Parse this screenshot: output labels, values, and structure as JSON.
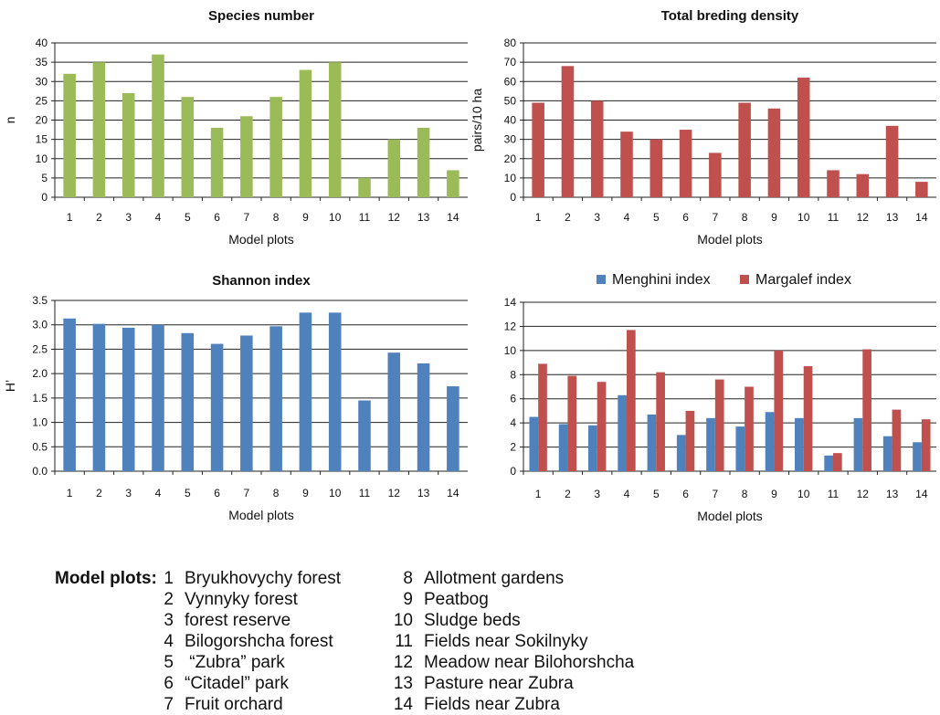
{
  "chart_data": [
    {
      "type": "bar",
      "title": "Species number",
      "xlabel": "Model plots",
      "ylabel": "n",
      "ylim": [
        0,
        40
      ],
      "yticks": [
        "0",
        "5",
        "10",
        "15",
        "20",
        "25",
        "30",
        "35",
        "40"
      ],
      "categories": [
        "1",
        "2",
        "3",
        "4",
        "5",
        "6",
        "7",
        "8",
        "9",
        "10",
        "11",
        "12",
        "13",
        "14"
      ],
      "series": [
        {
          "values": [
            32,
            35,
            27,
            37,
            26,
            18,
            21,
            26,
            33,
            35,
            5,
            15,
            18,
            7
          ],
          "color": "#9bbb59"
        }
      ],
      "grid": true
    },
    {
      "type": "bar",
      "title": "Total breding density",
      "xlabel": "Model plots",
      "ylabel": "pairs/10 ha",
      "ylim": [
        0,
        80
      ],
      "yticks": [
        "0",
        "10",
        "20",
        "30",
        "40",
        "50",
        "60",
        "70",
        "80"
      ],
      "categories": [
        "1",
        "2",
        "3",
        "4",
        "5",
        "6",
        "7",
        "8",
        "9",
        "10",
        "11",
        "12",
        "13",
        "14"
      ],
      "series": [
        {
          "values": [
            49,
            68,
            50,
            34,
            30,
            35,
            23,
            49,
            46,
            62,
            14,
            12,
            37,
            8
          ],
          "color": "#c0504d"
        }
      ],
      "grid": true
    },
    {
      "type": "bar",
      "title": "Shannon index",
      "xlabel": "Model plots",
      "ylabel": "H’",
      "ylim": [
        0,
        3.5
      ],
      "yticks": [
        "0.0",
        "0.5",
        "1.0",
        "1.5",
        "2.0",
        "2.5",
        "3.0",
        "3.5"
      ],
      "categories": [
        "1",
        "2",
        "3",
        "4",
        "5",
        "6",
        "7",
        "8",
        "9",
        "10",
        "11",
        "12",
        "13",
        "14"
      ],
      "series": [
        {
          "values": [
            3.13,
            3.02,
            2.94,
            3.0,
            2.83,
            2.61,
            2.78,
            2.97,
            3.25,
            3.25,
            1.45,
            2.43,
            2.21,
            1.74
          ],
          "color": "#4f81bd"
        }
      ],
      "grid": true
    },
    {
      "type": "bar",
      "title": "",
      "xlabel": "Model plots",
      "ylabel": "",
      "ylim": [
        0,
        14
      ],
      "yticks": [
        "0",
        "2",
        "4",
        "6",
        "8",
        "10",
        "12",
        "14"
      ],
      "categories": [
        "1",
        "2",
        "3",
        "4",
        "5",
        "6",
        "7",
        "8",
        "9",
        "10",
        "11",
        "12",
        "13",
        "14"
      ],
      "legend": "top",
      "series": [
        {
          "name": "Menghini index",
          "values": [
            4.5,
            3.9,
            3.8,
            6.3,
            4.7,
            3.0,
            4.4,
            3.7,
            4.9,
            4.4,
            1.3,
            4.4,
            2.9,
            2.4
          ],
          "color": "#4f81bd"
        },
        {
          "name": "Margalef index",
          "values": [
            8.9,
            7.9,
            7.4,
            11.7,
            8.2,
            5.0,
            7.6,
            7.0,
            10.0,
            8.7,
            1.5,
            10.1,
            5.1,
            4.3
          ],
          "color": "#c0504d"
        }
      ],
      "grid": true
    }
  ],
  "legend": {
    "heading": "Model plots:",
    "columns": [
      [
        {
          "num": "1",
          "name": "Bryukhovychy forest"
        },
        {
          "num": "2",
          "name": "Vynnyky forest"
        },
        {
          "num": "3",
          "name": "forest reserve"
        },
        {
          "num": "4",
          "name": "Bilogorshcha forest"
        },
        {
          "num": "5",
          "name": " “Zubra” park"
        },
        {
          "num": "6",
          "name": "“Citadel” park"
        },
        {
          "num": "7",
          "name": "Fruit orchard"
        }
      ],
      [
        {
          "num": "8",
          "name": "Allotment gardens"
        },
        {
          "num": "9",
          "name": "Peatbog"
        },
        {
          "num": "10",
          "name": "Sludge beds"
        },
        {
          "num": "11",
          "name": "Fields near Sokilnyky"
        },
        {
          "num": "12",
          "name": "Meadow near Bilohorshcha"
        },
        {
          "num": "13",
          "name": "Pasture near Zubra"
        },
        {
          "num": "14",
          "name": "Fields near Zubra"
        }
      ]
    ]
  }
}
